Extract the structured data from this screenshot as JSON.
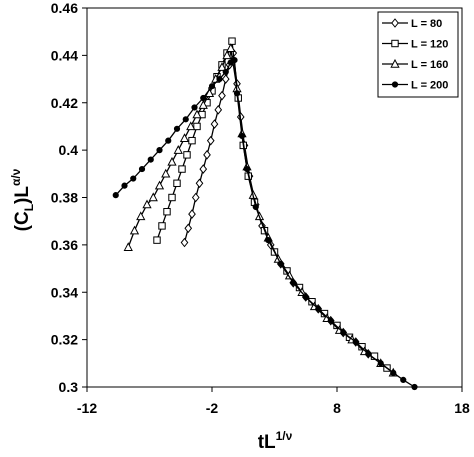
{
  "chart_data": {
    "type": "line",
    "xlabel": [
      "tL",
      "1/ν"
    ],
    "ylabel": [
      "(C",
      "L",
      ")L",
      "α/ν"
    ],
    "xlim": [
      -12,
      18
    ],
    "xticks": [
      -12,
      -2,
      8,
      18
    ],
    "ylim": [
      0.3,
      0.46
    ],
    "yticks": [
      0.3,
      0.32,
      0.34,
      0.36,
      0.38,
      0.4,
      0.42,
      0.44,
      0.46
    ],
    "legend": "upper right",
    "series": [
      {
        "name": "L = 80",
        "color": "#000000",
        "marker": "diamond",
        "x": [
          -4.2,
          -3.9,
          -3.6,
          -3.3,
          -3.0,
          -2.7,
          -2.4,
          -2.1,
          -1.8,
          -1.5,
          -1.2,
          -0.9,
          -0.6,
          -0.3,
          0,
          0.3,
          0.6,
          1,
          1.5,
          2,
          2.7,
          3.5,
          4.5,
          5.5,
          6.5,
          7.5,
          8.5,
          9.5,
          10.5
        ],
        "values": [
          0.361,
          0.367,
          0.373,
          0.38,
          0.386,
          0.392,
          0.398,
          0.404,
          0.411,
          0.417,
          0.423,
          0.43,
          0.436,
          0.441,
          0.428,
          0.414,
          0.402,
          0.389,
          0.377,
          0.368,
          0.36,
          0.352,
          0.344,
          0.338,
          0.333,
          0.328,
          0.323,
          0.319,
          0.314
        ]
      },
      {
        "name": "L = 120",
        "color": "#000000",
        "marker": "square",
        "x": [
          -6.4,
          -6.0,
          -5.6,
          -5.2,
          -4.8,
          -4.4,
          -4.0,
          -3.6,
          -3.2,
          -2.8,
          -2.4,
          -2.0,
          -1.6,
          -1.2,
          -0.8,
          -0.4,
          0.1,
          0.5,
          0.9,
          1.4,
          2.2,
          3,
          4,
          5,
          6,
          7,
          8,
          9,
          10,
          11,
          12
        ],
        "values": [
          0.362,
          0.368,
          0.374,
          0.38,
          0.386,
          0.392,
          0.398,
          0.404,
          0.41,
          0.415,
          0.42,
          0.425,
          0.431,
          0.436,
          0.441,
          0.446,
          0.422,
          0.402,
          0.389,
          0.378,
          0.366,
          0.357,
          0.349,
          0.342,
          0.336,
          0.331,
          0.326,
          0.321,
          0.317,
          0.313,
          0.308
        ]
      },
      {
        "name": "L = 160",
        "color": "#000000",
        "marker": "triangle",
        "x": [
          -8.7,
          -8.2,
          -7.7,
          -7.2,
          -6.7,
          -6.2,
          -5.7,
          -5.2,
          -4.7,
          -4.2,
          -3.7,
          -3.2,
          -2.7,
          -2.2,
          -1.7,
          -1.2,
          -0.8,
          -0.5,
          0,
          0.4,
          0.8,
          1.3,
          1.8,
          2.5,
          3.3,
          4.2,
          5.2,
          6.2,
          7.2,
          8.2,
          9.2,
          10.2,
          11.5,
          12.5
        ],
        "values": [
          0.359,
          0.366,
          0.372,
          0.377,
          0.38,
          0.385,
          0.39,
          0.395,
          0.4,
          0.405,
          0.41,
          0.415,
          0.419,
          0.424,
          0.43,
          0.435,
          0.44,
          0.443,
          0.426,
          0.407,
          0.393,
          0.381,
          0.372,
          0.363,
          0.354,
          0.347,
          0.34,
          0.334,
          0.329,
          0.324,
          0.32,
          0.315,
          0.31,
          0.306
        ]
      },
      {
        "name": "L = 200",
        "color": "#000000",
        "marker": "circle",
        "x": [
          -9.7,
          -9,
          -8.3,
          -7.6,
          -6.9,
          -6.2,
          -5.5,
          -4.8,
          -4.1,
          -3.4,
          -2.7,
          -2.0,
          -1.4,
          -0.9,
          -0.5,
          -0.2,
          0,
          0.4,
          0.8,
          1.5,
          2.5,
          3.5,
          4.5,
          5.5,
          6.5,
          7.5,
          8.5,
          9.5,
          10.5,
          11.5,
          12.5,
          13.3,
          14.2
        ],
        "values": [
          0.381,
          0.385,
          0.388,
          0.392,
          0.396,
          0.4,
          0.404,
          0.409,
          0.413,
          0.418,
          0.422,
          0.427,
          0.43,
          0.433,
          0.437,
          0.438,
          0.424,
          0.406,
          0.392,
          0.376,
          0.362,
          0.352,
          0.344,
          0.338,
          0.333,
          0.328,
          0.323,
          0.319,
          0.314,
          0.31,
          0.306,
          0.303,
          0.3
        ]
      }
    ]
  }
}
